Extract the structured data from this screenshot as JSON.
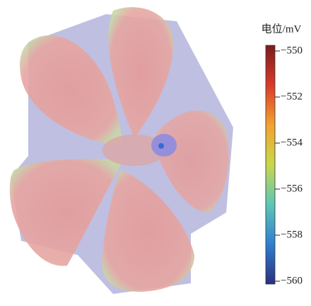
{
  "chart_data": {
    "type": "colorbar",
    "title": "电位/mV",
    "clim": [
      -560,
      -550
    ],
    "cticks": [
      {
        "value": -550,
        "label": "−550"
      },
      {
        "value": -552,
        "label": "−552"
      },
      {
        "value": -554,
        "label": "−554"
      },
      {
        "value": -556,
        "label": "−556"
      },
      {
        "value": -558,
        "label": "−558"
      },
      {
        "value": -560,
        "label": "−560"
      }
    ],
    "colormap": [
      "#2b2f80",
      "#2f7fd0",
      "#5cc6b8",
      "#c8d84a",
      "#f2a230",
      "#d83a2a",
      "#7a1c1c"
    ]
  }
}
